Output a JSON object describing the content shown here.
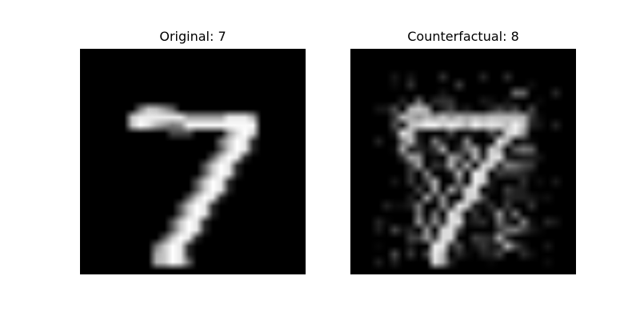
{
  "panels": {
    "original": {
      "title": "Original: 7"
    },
    "counterfactual": {
      "title": "Counterfactual: 8"
    }
  }
}
